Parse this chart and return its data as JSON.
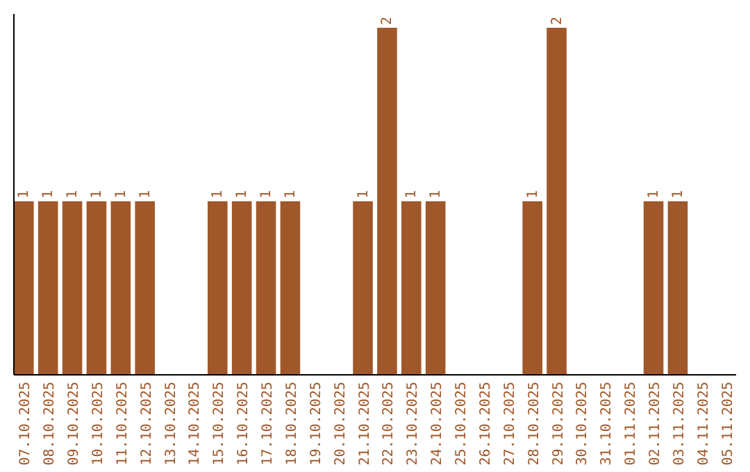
{
  "chart_data": {
    "type": "bar",
    "categories": [
      "07.10.2025",
      "08.10.2025",
      "09.10.2025",
      "10.10.2025",
      "11.10.2025",
      "12.10.2025",
      "13.10.2025",
      "14.10.2025",
      "15.10.2025",
      "16.10.2025",
      "17.10.2025",
      "18.10.2025",
      "19.10.2025",
      "20.10.2025",
      "21.10.2025",
      "22.10.2025",
      "23.10.2025",
      "24.10.2025",
      "25.10.2025",
      "26.10.2025",
      "27.10.2025",
      "28.10.2025",
      "29.10.2025",
      "30.10.2025",
      "31.10.2025",
      "01.11.2025",
      "02.11.2025",
      "03.11.2025",
      "04.11.2025",
      "05.11.2025"
    ],
    "values": [
      1,
      1,
      1,
      1,
      1,
      1,
      0,
      0,
      1,
      1,
      1,
      1,
      0,
      0,
      1,
      2,
      1,
      1,
      0,
      0,
      0,
      1,
      2,
      0,
      0,
      0,
      1,
      1,
      0,
      0
    ],
    "value_labels": [
      "1",
      "1",
      "1",
      "1",
      "1",
      "1",
      null,
      null,
      "1",
      "1",
      "1",
      "1",
      null,
      null,
      "1",
      "2",
      "1",
      "1",
      null,
      null,
      null,
      "1",
      "2",
      null,
      null,
      null,
      "1",
      "1",
      null,
      null
    ],
    "color": "#a0582a",
    "tick_labels": "x"
  }
}
